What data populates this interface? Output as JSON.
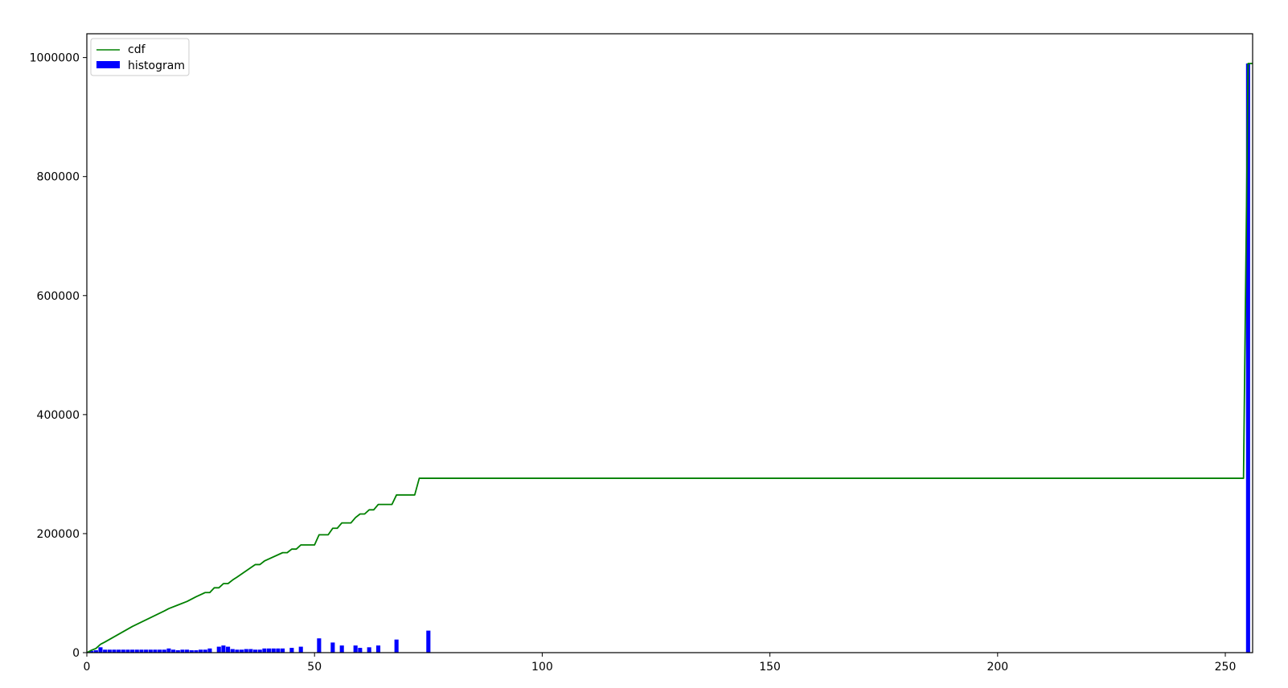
{
  "chart_data": {
    "type": "bar+line",
    "title": "",
    "xlabel": "",
    "ylabel": "",
    "xlim": [
      0,
      256
    ],
    "ylim": [
      0,
      1040000
    ],
    "xticks": [
      0,
      50,
      100,
      150,
      200,
      250
    ],
    "yticks": [
      0,
      200000,
      400000,
      600000,
      800000,
      1000000
    ],
    "legend": {
      "placement": "top-left",
      "entries": [
        "cdf",
        "histogram"
      ]
    },
    "colors": {
      "cdf": "#008000",
      "histogram": "#0000ff",
      "axes": "#000000",
      "background": "#ffffff"
    },
    "series": [
      {
        "name": "cdf",
        "type": "line",
        "x": [
          0,
          1,
          2,
          3,
          4,
          10,
          17,
          18,
          20,
          22,
          24,
          26,
          27,
          28,
          29,
          30,
          31,
          32,
          33,
          37,
          38,
          39,
          43,
          44,
          45,
          46,
          47,
          50,
          51,
          52,
          53,
          54,
          55,
          56,
          57,
          58,
          59,
          60,
          61,
          62,
          63,
          64,
          66,
          67,
          68,
          71,
          72,
          73,
          254,
          255,
          256
        ],
        "y": [
          0,
          4000,
          7000,
          14000,
          18000,
          44000,
          70000,
          74000,
          80000,
          86000,
          94000,
          101000,
          101000,
          109000,
          109000,
          116000,
          116000,
          122000,
          127000,
          148000,
          148000,
          154000,
          168000,
          168000,
          174000,
          174000,
          181000,
          181000,
          198000,
          198000,
          198000,
          209000,
          209000,
          218000,
          218000,
          218000,
          227000,
          233000,
          233000,
          240000,
          240000,
          249000,
          249000,
          249000,
          265000,
          265000,
          265000,
          293000,
          293000,
          990000,
          990000
        ]
      },
      {
        "name": "histogram",
        "type": "bar",
        "x": [
          1,
          2,
          3,
          4,
          5,
          6,
          7,
          8,
          9,
          10,
          11,
          12,
          13,
          14,
          15,
          16,
          17,
          18,
          19,
          20,
          21,
          22,
          23,
          24,
          25,
          26,
          27,
          29,
          30,
          31,
          32,
          33,
          34,
          35,
          36,
          37,
          38,
          39,
          40,
          41,
          42,
          43,
          45,
          47,
          51,
          54,
          56,
          59,
          60,
          62,
          64,
          68,
          75,
          255
        ],
        "values": [
          3000,
          4000,
          9000,
          5000,
          5000,
          5000,
          5000,
          5000,
          5000,
          5000,
          5000,
          5000,
          5000,
          5000,
          5000,
          5000,
          5000,
          7000,
          5000,
          4000,
          5000,
          5000,
          4000,
          4000,
          5000,
          5000,
          7000,
          10000,
          12000,
          10000,
          6000,
          5000,
          5000,
          6000,
          6000,
          5000,
          5000,
          7000,
          7000,
          7000,
          7000,
          7000,
          8000,
          10000,
          24000,
          17000,
          12000,
          12000,
          8000,
          9000,
          12000,
          22000,
          37000,
          990000
        ]
      }
    ]
  }
}
